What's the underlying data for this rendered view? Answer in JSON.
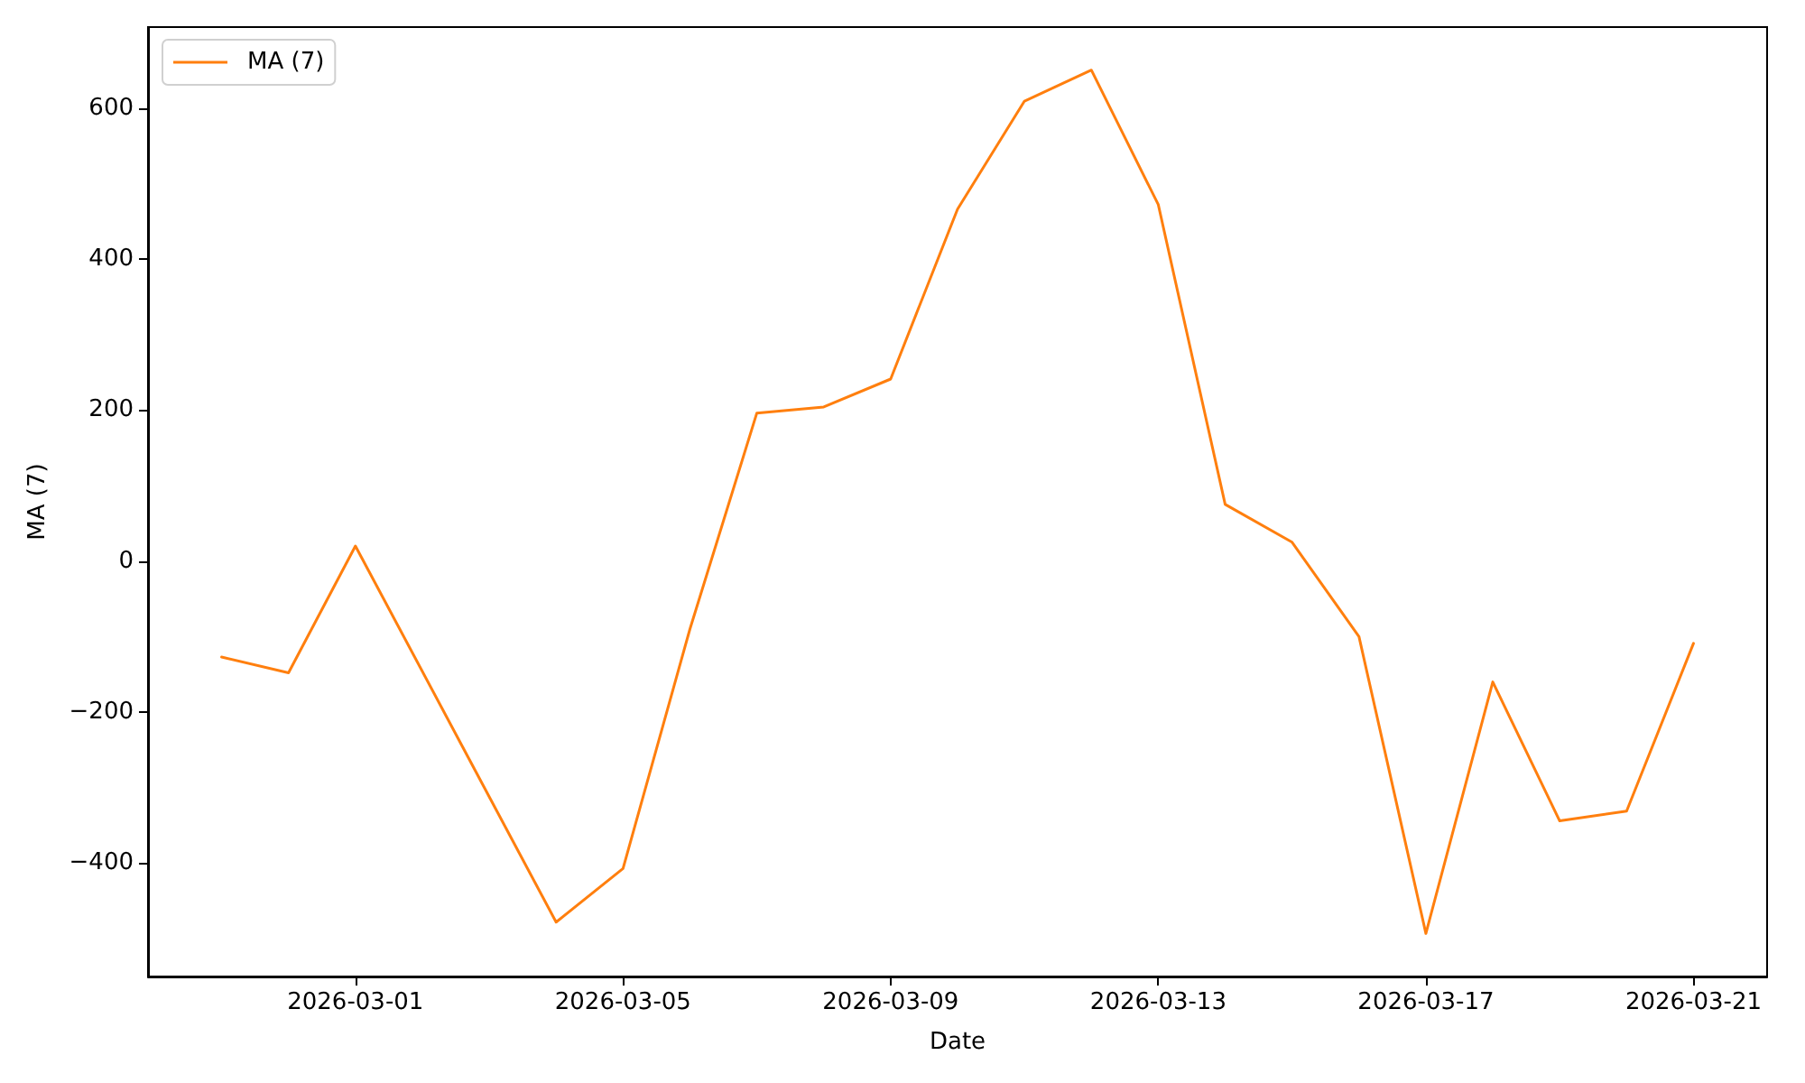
{
  "chart_data": {
    "type": "line",
    "xlabel": "Date",
    "ylabel": "MA (7)",
    "x": [
      "2026-02-27",
      "2026-02-28",
      "2026-03-01",
      "2026-03-04",
      "2026-03-05",
      "2026-03-06",
      "2026-03-07",
      "2026-03-08",
      "2026-03-09",
      "2026-03-10",
      "2026-03-11",
      "2026-03-12",
      "2026-03-13",
      "2026-03-14",
      "2026-03-15",
      "2026-03-16",
      "2026-03-17",
      "2026-03-18",
      "2026-03-19",
      "2026-03-20",
      "2026-03-21"
    ],
    "series": [
      {
        "name": "MA (7)",
        "color": "#ff7f0e",
        "values": [
          -127,
          -148,
          20,
          -478,
          -407,
          -90,
          196,
          204,
          241,
          466,
          609,
          650,
          472,
          75,
          25,
          -100,
          -493,
          -160,
          -344,
          -331,
          -109
        ]
      }
    ],
    "xlim": [
      "2026-02-25T21:36",
      "2026-03-22T02:24"
    ],
    "xticks": [
      "2026-03-01",
      "2026-03-05",
      "2026-03-09",
      "2026-03-13",
      "2026-03-17",
      "2026-03-21"
    ],
    "ylim": [
      -550,
      707
    ],
    "yticks": [
      {
        "value": -400,
        "label": "−400"
      },
      {
        "value": -200,
        "label": "−200"
      },
      0,
      200,
      400,
      600
    ],
    "grid": false,
    "legend": "top left",
    "marker": "none",
    "line_style": "solid"
  }
}
